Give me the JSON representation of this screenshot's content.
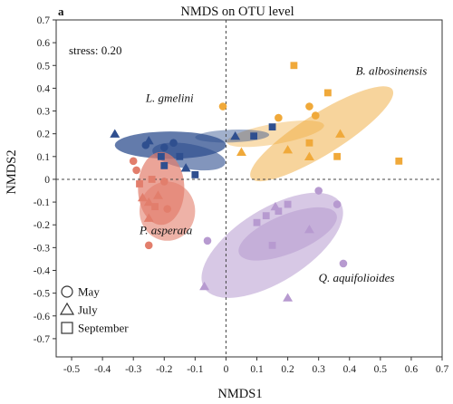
{
  "chart_data": {
    "type": "scatter",
    "panel_label": "a",
    "title": "NMDS  on OTU level",
    "xlabel": "NMDS1",
    "ylabel": "NMDS2",
    "stress": "stress: 0.20",
    "xlim": [
      -0.55,
      0.7
    ],
    "ylim": [
      -0.78,
      0.7
    ],
    "x_ticks": [
      -0.5,
      -0.4,
      -0.3,
      -0.2,
      -0.1,
      0,
      0.1,
      0.2,
      0.3,
      0.4,
      0.5,
      0.6,
      0.7
    ],
    "y_ticks": [
      0.7,
      0.6,
      0.5,
      0.4,
      0.3,
      0.2,
      0.1,
      0,
      -0.1,
      -0.2,
      -0.3,
      -0.4,
      -0.5,
      -0.6,
      -0.7
    ],
    "reference_lines": {
      "x": 0,
      "y": 0,
      "style": "dashed"
    },
    "legend": {
      "placement": "bottom-left",
      "entries": [
        {
          "label": "May",
          "shape": "circle"
        },
        {
          "label": "July",
          "shape": "triangle"
        },
        {
          "label": "September",
          "shape": "square"
        }
      ]
    },
    "colors": {
      "B. albosinensis": "#f0a93a",
      "L. gmelini": "#2f4f8f",
      "P. asperata": "#e27e6c",
      "Q. aquifolioides": "#b79ad0"
    },
    "groups": [
      {
        "label": "B. albosinensis",
        "label_pos": [
          0.42,
          0.46
        ],
        "ellipses": [
          {
            "center": [
              0.31,
              0.2
            ],
            "semi_axes": [
              0.27,
              0.09
            ],
            "angle_deg": -32,
            "opacity": 0.5
          },
          {
            "center": [
              0.16,
              0.2
            ],
            "semi_axes": [
              0.16,
              0.045
            ],
            "angle_deg": -10,
            "opacity": 0.4
          }
        ],
        "points": [
          {
            "month": "May",
            "x": -0.01,
            "y": 0.32
          },
          {
            "month": "May",
            "x": 0.17,
            "y": 0.27
          },
          {
            "month": "May",
            "x": 0.27,
            "y": 0.32
          },
          {
            "month": "May",
            "x": 0.29,
            "y": 0.28
          },
          {
            "month": "July",
            "x": 0.05,
            "y": 0.12
          },
          {
            "month": "July",
            "x": 0.2,
            "y": 0.13
          },
          {
            "month": "July",
            "x": 0.27,
            "y": 0.1
          },
          {
            "month": "July",
            "x": 0.37,
            "y": 0.2
          },
          {
            "month": "September",
            "x": 0.22,
            "y": 0.5
          },
          {
            "month": "September",
            "x": 0.27,
            "y": 0.16
          },
          {
            "month": "September",
            "x": 0.36,
            "y": 0.1
          },
          {
            "month": "September",
            "x": 0.56,
            "y": 0.08
          },
          {
            "month": "September",
            "x": 0.33,
            "y": 0.38
          }
        ]
      },
      {
        "label": "L. gmelini",
        "label_pos": [
          -0.26,
          0.34
        ],
        "ellipses": [
          {
            "center": [
              -0.18,
              0.15
            ],
            "semi_axes": [
              0.18,
              0.06
            ],
            "angle_deg": 0,
            "opacity": 0.75
          },
          {
            "center": [
              -0.12,
              0.1
            ],
            "semi_axes": [
              0.12,
              0.055
            ],
            "angle_deg": 10,
            "opacity": 0.6
          },
          {
            "center": [
              0.02,
              0.19
            ],
            "semi_axes": [
              0.12,
              0.028
            ],
            "angle_deg": -2,
            "opacity": 0.45
          }
        ],
        "points": [
          {
            "month": "May",
            "x": -0.26,
            "y": 0.15
          },
          {
            "month": "May",
            "x": -0.2,
            "y": 0.14
          },
          {
            "month": "May",
            "x": -0.17,
            "y": 0.16
          },
          {
            "month": "July",
            "x": -0.36,
            "y": 0.2
          },
          {
            "month": "July",
            "x": -0.25,
            "y": 0.17
          },
          {
            "month": "July",
            "x": -0.13,
            "y": 0.05
          },
          {
            "month": "July",
            "x": 0.03,
            "y": 0.19
          },
          {
            "month": "September",
            "x": -0.21,
            "y": 0.1
          },
          {
            "month": "September",
            "x": -0.2,
            "y": 0.06
          },
          {
            "month": "September",
            "x": -0.15,
            "y": 0.1
          },
          {
            "month": "September",
            "x": -0.1,
            "y": 0.02
          },
          {
            "month": "September",
            "x": 0.09,
            "y": 0.19
          },
          {
            "month": "September",
            "x": 0.15,
            "y": 0.23
          }
        ]
      },
      {
        "label": "P. asperata",
        "label_pos": [
          -0.28,
          -0.24
        ],
        "ellipses": [
          {
            "center": [
              -0.21,
              -0.04
            ],
            "semi_axes": [
              0.075,
              0.16
            ],
            "angle_deg": 0,
            "opacity": 0.7
          },
          {
            "center": [
              -0.19,
              -0.14
            ],
            "semi_axes": [
              0.09,
              0.13
            ],
            "angle_deg": 0,
            "opacity": 0.6
          }
        ],
        "points": [
          {
            "month": "May",
            "x": -0.3,
            "y": 0.08
          },
          {
            "month": "May",
            "x": -0.29,
            "y": 0.04
          },
          {
            "month": "May",
            "x": -0.2,
            "y": -0.01
          },
          {
            "month": "May",
            "x": -0.19,
            "y": -0.13
          },
          {
            "month": "May",
            "x": -0.25,
            "y": -0.29
          },
          {
            "month": "July",
            "x": -0.27,
            "y": -0.08
          },
          {
            "month": "July",
            "x": -0.25,
            "y": -0.1
          },
          {
            "month": "July",
            "x": -0.22,
            "y": -0.07
          },
          {
            "month": "July",
            "x": -0.25,
            "y": -0.17
          },
          {
            "month": "September",
            "x": -0.28,
            "y": -0.02
          },
          {
            "month": "September",
            "x": -0.24,
            "y": 0.0
          },
          {
            "month": "September",
            "x": -0.23,
            "y": -0.12
          }
        ]
      },
      {
        "label": "Q. aquifolioides",
        "label_pos": [
          0.3,
          -0.45
        ],
        "ellipses": [
          {
            "center": [
              0.15,
              -0.29
            ],
            "semi_axes": [
              0.26,
              0.16
            ],
            "angle_deg": -32,
            "opacity": 0.55
          },
          {
            "center": [
              0.2,
              -0.24
            ],
            "semi_axes": [
              0.17,
              0.085
            ],
            "angle_deg": -22,
            "opacity": 0.55
          }
        ],
        "points": [
          {
            "month": "May",
            "x": -0.06,
            "y": -0.27
          },
          {
            "month": "May",
            "x": 0.3,
            "y": -0.05
          },
          {
            "month": "May",
            "x": 0.36,
            "y": -0.11
          },
          {
            "month": "May",
            "x": 0.38,
            "y": -0.37
          },
          {
            "month": "July",
            "x": -0.07,
            "y": -0.47
          },
          {
            "month": "July",
            "x": 0.16,
            "y": -0.12
          },
          {
            "month": "July",
            "x": 0.27,
            "y": -0.22
          },
          {
            "month": "July",
            "x": 0.2,
            "y": -0.52
          },
          {
            "month": "September",
            "x": 0.1,
            "y": -0.19
          },
          {
            "month": "September",
            "x": 0.13,
            "y": -0.16
          },
          {
            "month": "September",
            "x": 0.17,
            "y": -0.14
          },
          {
            "month": "September",
            "x": 0.2,
            "y": -0.11
          },
          {
            "month": "September",
            "x": 0.15,
            "y": -0.29
          }
        ]
      }
    ]
  }
}
